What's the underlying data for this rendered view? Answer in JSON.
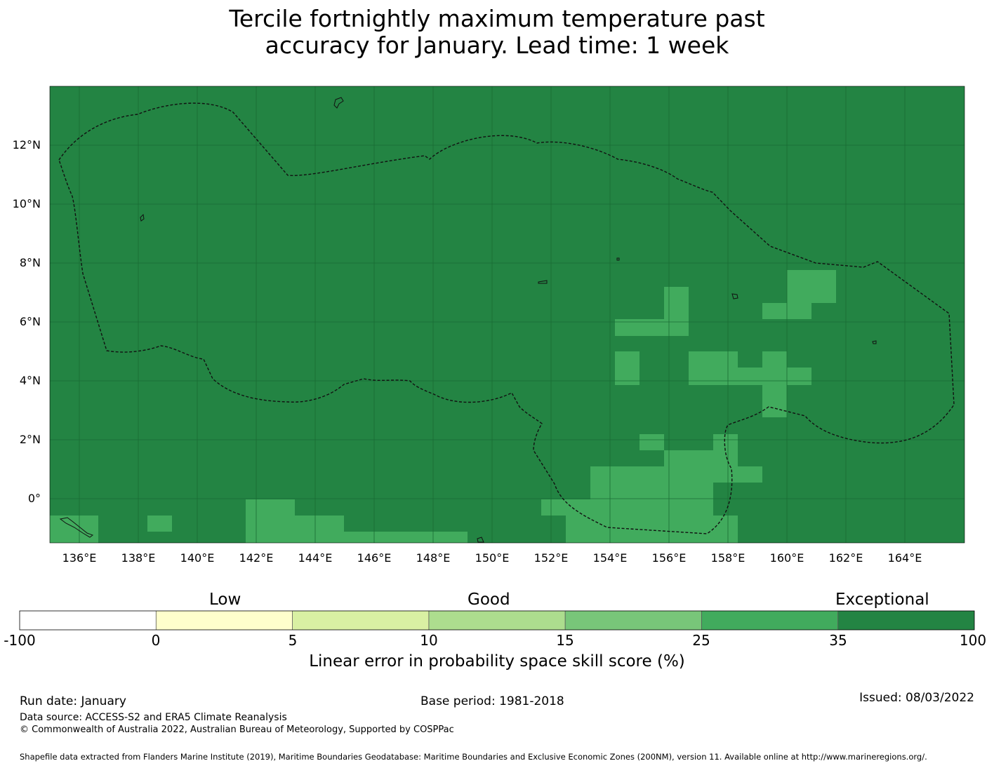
{
  "title": {
    "line1": "Tercile fortnightly maximum temperature past",
    "line2": "accuracy for January. Lead time: 1 week"
  },
  "map": {
    "x_ticks": [
      "136°E",
      "138°E",
      "140°E",
      "142°E",
      "144°E",
      "146°E",
      "148°E",
      "150°E",
      "152°E",
      "154°E",
      "156°E",
      "158°E",
      "160°E",
      "162°E",
      "164°E"
    ],
    "y_ticks": [
      "12°N",
      "10°N",
      "8°N",
      "6°N",
      "4°N",
      "2°N",
      "0°"
    ],
    "lon_range": [
      135.0,
      166.0
    ],
    "lat_range": [
      -1.5,
      14.0
    ],
    "background_category_color": "#238443",
    "highlight_category_color": "#41ab5d",
    "eez_boundary_style": "dashed"
  },
  "colorbar": {
    "categories": {
      "low": "Low",
      "good": "Good",
      "exceptional": "Exceptional"
    },
    "ticks": [
      "-100",
      "0",
      "5",
      "10",
      "15",
      "25",
      "35",
      "100"
    ],
    "colors": [
      "#ffffff",
      "#ffffcc",
      "#d9f0a3",
      "#addd8e",
      "#78c679",
      "#41ab5d",
      "#238443"
    ],
    "label": "Linear error in probability space skill score (%)"
  },
  "footer": {
    "run_date": "Run date: January",
    "base_period": "Base period: 1981-2018",
    "issued": "Issued: 08/03/2022",
    "data_source": "Data source: ACCESS-S2 and ERA5 Climate Reanalysis",
    "copyright": "© Commonwealth of Australia 2022, Australian Bureau of Meteorology, Supported by COSPPac",
    "shapefile": "Shapefile data extracted from Flanders Marine Institute (2019), Maritime Boundaries Geodatabase: Maritime Boundaries and Exclusive Economic Zones (200NM), version 11. Available online at http://www.marineregions.org/."
  }
}
